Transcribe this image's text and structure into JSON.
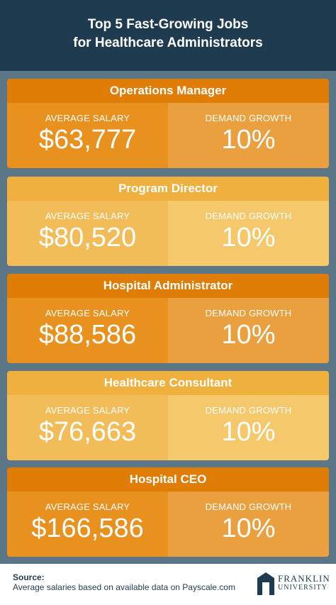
{
  "header": {
    "title_line1": "Top 5 Fast-Growing Jobs",
    "title_line2": "for Healthcare Administrators"
  },
  "jobs": [
    {
      "title": "Operations Manager",
      "salary_label": "AVERAGE SALARY",
      "salary": "$63,777",
      "growth_label": "DEMAND GROWTH",
      "growth": "10%"
    },
    {
      "title": "Program Director",
      "salary_label": "AVERAGE SALARY",
      "salary": "$80,520",
      "growth_label": "DEMAND GROWTH",
      "growth": "10%"
    },
    {
      "title": "Hospital Administrator",
      "salary_label": "AVERAGE SALARY",
      "salary": "$88,586",
      "growth_label": "DEMAND GROWTH",
      "growth": "10%"
    },
    {
      "title": "Healthcare Consultant",
      "salary_label": "AVERAGE SALARY",
      "salary": "$76,663",
      "growth_label": "DEMAND GROWTH",
      "growth": "10%"
    },
    {
      "title": "Hospital CEO",
      "salary_label": "AVERAGE SALARY",
      "salary": "$166,586",
      "growth_label": "DEMAND GROWTH",
      "growth": "10%"
    }
  ],
  "footer": {
    "source_label": "Source:",
    "source_text": "Average salaries based on available data on Payscale.com",
    "logo_line1": "FRANKLIN",
    "logo_line2": "UNIVERSITY"
  }
}
